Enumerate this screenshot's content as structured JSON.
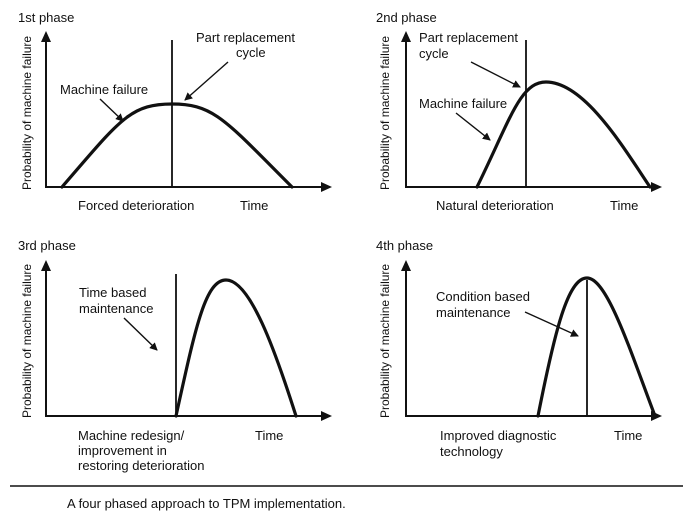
{
  "y_axis_label": "Probability of machine failure",
  "time_label": "Time",
  "caption": "A four phased approach to TPM implementation.",
  "panels": [
    {
      "title": "1st phase",
      "callouts": [
        "Part replacement",
        "cycle",
        "Machine failure"
      ],
      "footer": [
        "Forced deterioration"
      ]
    },
    {
      "title": "2nd phase",
      "callouts": [
        "Part replacement",
        "cycle",
        "Machine failure"
      ],
      "footer": [
        "Natural deterioration"
      ]
    },
    {
      "title": "3rd phase",
      "callouts": [
        "Time based",
        "maintenance"
      ],
      "footer": [
        "Machine redesign/",
        "improvement in",
        "restoring deterioration"
      ]
    },
    {
      "title": "4th phase",
      "callouts": [
        "Condition based",
        "maintenance"
      ],
      "footer": [
        "Improved diagnostic",
        "technology"
      ]
    }
  ]
}
